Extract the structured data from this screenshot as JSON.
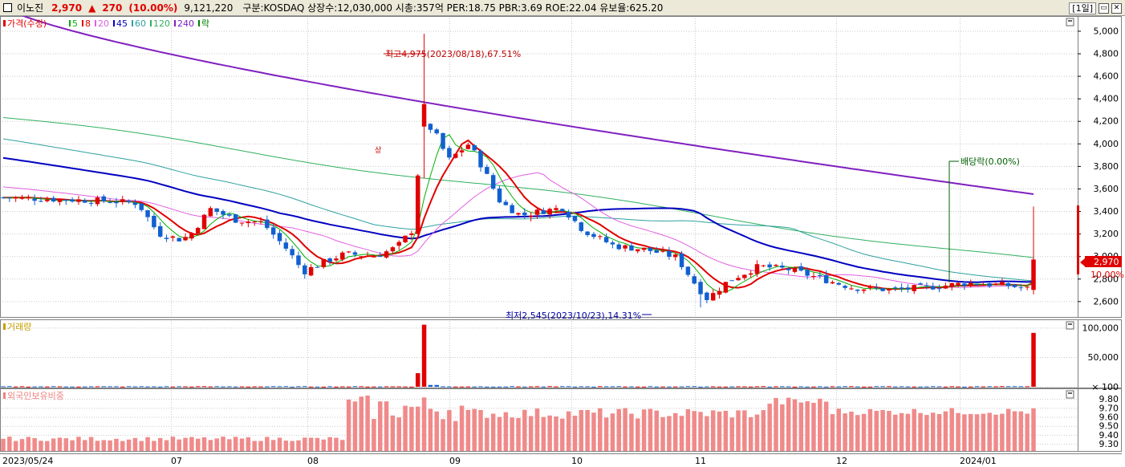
{
  "title_bar": {
    "name": "이노진",
    "price": "2,970",
    "arrow": "▲",
    "change": "270",
    "change_pct": "(10.00%)",
    "volume": "9,121,220",
    "info": "구분:KOSDAQ 상장수:12,030,000 시총:357억 PER:18.75 PBR:3.69 ROE:22.04 유보율:625.20",
    "period_button": "[1일]",
    "restore_button": "▭",
    "close_button": "✕"
  },
  "legend_price": {
    "price_label": "가격(수정)",
    "ma": [
      {
        "label": "5",
        "color": "#00b000"
      },
      {
        "label": "8",
        "color": "#e00000"
      },
      {
        "label": "20",
        "color": "#e060e0"
      },
      {
        "label": "45",
        "color": "#0000c0"
      },
      {
        "label": "60",
        "color": "#30a0a0"
      },
      {
        "label": "120",
        "color": "#30b060"
      },
      {
        "label": "240",
        "color": "#8020c0"
      }
    ],
    "ex_dividend_label": "락"
  },
  "legend_volume": {
    "label": "거래량"
  },
  "legend_foreign": {
    "label": "외국인보유비중"
  },
  "annotations": {
    "high": "최고4,975(2023/08/18),67.51%",
    "low": "최저2,545(2023/10/23),14.31%",
    "ex_dividend": "배당락(0.00%)",
    "limit_up_mark": "상"
  },
  "current_price_tag": {
    "price": "2,970",
    "pct": "10.00%"
  },
  "chart_data": [
    {
      "type": "candlestick",
      "title": "이노진 가격(수정)",
      "x_labels": [
        "2023/05/24",
        "07",
        "08",
        "09",
        "10",
        "11",
        "12",
        "2024/01"
      ],
      "y_ticks": [
        2600,
        2800,
        3000,
        3200,
        3400,
        3600,
        3800,
        4000,
        4200,
        4400,
        4600,
        4800,
        5000
      ],
      "ylim": [
        2460,
        5110
      ],
      "high": {
        "value": 4975,
        "date": "2023/08/18"
      },
      "low": {
        "value": 2545,
        "date": "2023/10/23"
      },
      "last": {
        "close": 2970,
        "prev_close": 2700,
        "high": 3440,
        "low": 2660
      },
      "series": [
        {
          "name": "5",
          "color": "#00b000"
        },
        {
          "name": "8",
          "color": "#e00000"
        },
        {
          "name": "20",
          "color": "#e060e0"
        },
        {
          "name": "45",
          "color": "#0000c0"
        },
        {
          "name": "60",
          "color": "#30a0a0"
        },
        {
          "name": "120",
          "color": "#30b060"
        },
        {
          "name": "240",
          "color": "#8020c0"
        }
      ]
    },
    {
      "type": "bar",
      "title": "거래량",
      "y_ticks": [
        100,
        50000,
        100000
      ],
      "y_tick_labels": [
        "× 100",
        "50,000",
        "100,000"
      ],
      "ylim": [
        0,
        110000
      ],
      "peaks": [
        {
          "date": "2023/08/18",
          "value": 105000
        },
        {
          "date": "2024/01 last",
          "value": 91212
        }
      ]
    },
    {
      "type": "bar",
      "title": "외국인보유비중",
      "y_ticks": [
        9.3,
        9.4,
        9.5,
        9.6,
        9.7,
        9.8
      ],
      "y_tick_labels": [
        "9.30",
        "9.40",
        "9.50",
        "9.60",
        "9.70",
        "9.80"
      ],
      "ylim": [
        9.22,
        9.9
      ]
    }
  ]
}
